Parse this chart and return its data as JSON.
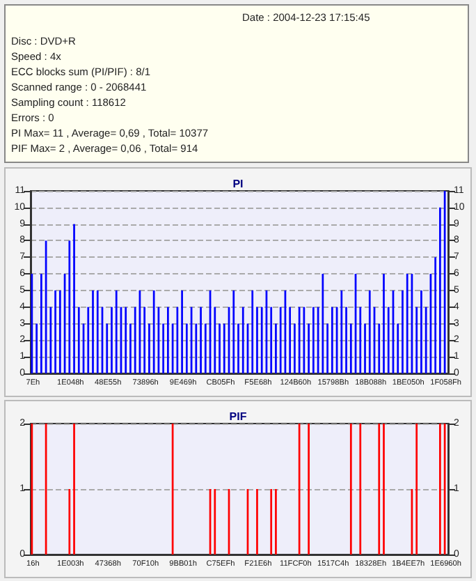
{
  "chart_data": [
    {
      "type": "other",
      "annotations": [
        "Date : 2004-12-23 17:15:45",
        "Disc : DVD+R",
        "Speed : 4x",
        "ECC blocks sum (PI/PIF) : 8/1",
        "Scanned range : 0 - 2068441",
        "Sampling count : 118612",
        "Errors : 0",
        "PI Max= 11 , Average= 0,69 , Total= 10377",
        "PIF Max= 2 , Average= 0,06 , Total= 914"
      ]
    },
    {
      "type": "bar",
      "title": "PI",
      "categories": [
        "7Eh",
        null,
        null,
        null,
        null,
        null,
        null,
        null,
        "1E048h",
        null,
        null,
        null,
        null,
        null,
        null,
        null,
        "48E55h",
        null,
        null,
        null,
        null,
        null,
        null,
        null,
        "73896h",
        null,
        null,
        null,
        null,
        null,
        null,
        null,
        "9E469h",
        null,
        null,
        null,
        null,
        null,
        null,
        null,
        "CB05Fh",
        null,
        null,
        null,
        null,
        null,
        null,
        null,
        "F5E68h",
        null,
        null,
        null,
        null,
        null,
        null,
        null,
        "124B60h",
        null,
        null,
        null,
        null,
        null,
        null,
        null,
        "15798Bh",
        null,
        null,
        null,
        null,
        null,
        null,
        null,
        "18B088h",
        null,
        null,
        null,
        null,
        null,
        null,
        null,
        "1BE050h",
        null,
        null,
        null,
        null,
        null,
        null,
        null,
        "1F058Fh"
      ],
      "values": [
        6,
        3,
        6,
        8,
        4,
        5,
        5,
        6,
        8,
        9,
        4,
        3,
        4,
        5,
        5,
        4,
        3,
        4,
        5,
        4,
        4,
        3,
        4,
        5,
        4,
        3,
        5,
        4,
        3,
        4,
        3,
        4,
        5,
        3,
        4,
        3,
        4,
        3,
        5,
        4,
        3,
        3,
        4,
        5,
        3,
        4,
        3,
        5,
        4,
        4,
        5,
        4,
        3,
        4,
        5,
        4,
        3,
        4,
        4,
        3,
        4,
        4,
        6,
        3,
        4,
        4,
        5,
        4,
        3,
        6,
        4,
        3,
        5,
        4,
        3,
        6,
        4,
        5,
        3,
        5,
        6,
        6,
        4,
        5,
        4,
        6,
        7,
        10,
        11
      ],
      "color": "#0000ff",
      "ylim": [
        0,
        11
      ],
      "yticks": [
        0,
        1,
        2,
        3,
        4,
        5,
        6,
        7,
        8,
        9,
        10,
        11
      ],
      "y2lim": [
        0,
        11
      ],
      "y2ticks": [
        0,
        1,
        2,
        3,
        4,
        5,
        6,
        7,
        8,
        9,
        10,
        11
      ],
      "grid": "y"
    },
    {
      "type": "bar",
      "title": "PIF",
      "categories": [
        "16h",
        null,
        null,
        null,
        null,
        null,
        null,
        null,
        "1E003h",
        null,
        null,
        null,
        null,
        null,
        null,
        null,
        "47368h",
        null,
        null,
        null,
        null,
        null,
        null,
        null,
        "70F10h",
        null,
        null,
        null,
        null,
        null,
        null,
        null,
        "9BB01h",
        null,
        null,
        null,
        null,
        null,
        null,
        null,
        "C75EFh",
        null,
        null,
        null,
        null,
        null,
        null,
        null,
        "F21E6h",
        null,
        null,
        null,
        null,
        null,
        null,
        null,
        "11FCF0h",
        null,
        null,
        null,
        null,
        null,
        null,
        null,
        "1517C4h",
        null,
        null,
        null,
        null,
        null,
        null,
        null,
        "18328Eh",
        null,
        null,
        null,
        null,
        null,
        null,
        null,
        "1B4EE7h",
        null,
        null,
        null,
        null,
        null,
        null,
        null,
        "1E6960h"
      ],
      "values": [
        2,
        0,
        0,
        2,
        0,
        0,
        0,
        0,
        1,
        2,
        0,
        0,
        0,
        0,
        0,
        0,
        0,
        0,
        0,
        0,
        0,
        0,
        0,
        0,
        0,
        0,
        0,
        0,
        0,
        0,
        2,
        0,
        0,
        0,
        0,
        0,
        0,
        0,
        1,
        1,
        0,
        0,
        1,
        0,
        0,
        0,
        1,
        0,
        1,
        0,
        0,
        1,
        1,
        0,
        0,
        0,
        0,
        2,
        0,
        2,
        0,
        0,
        0,
        0,
        0,
        0,
        0,
        0,
        2,
        0,
        2,
        0,
        0,
        0,
        2,
        2,
        0,
        0,
        0,
        0,
        0,
        1,
        2,
        0,
        0,
        0,
        0,
        2,
        2
      ],
      "color": "#ff0000",
      "ylim": [
        0,
        2
      ],
      "yticks": [
        0,
        1,
        2
      ],
      "y2lim": [
        0,
        2
      ],
      "y2ticks": [
        0,
        1,
        2
      ],
      "grid": "y"
    }
  ]
}
